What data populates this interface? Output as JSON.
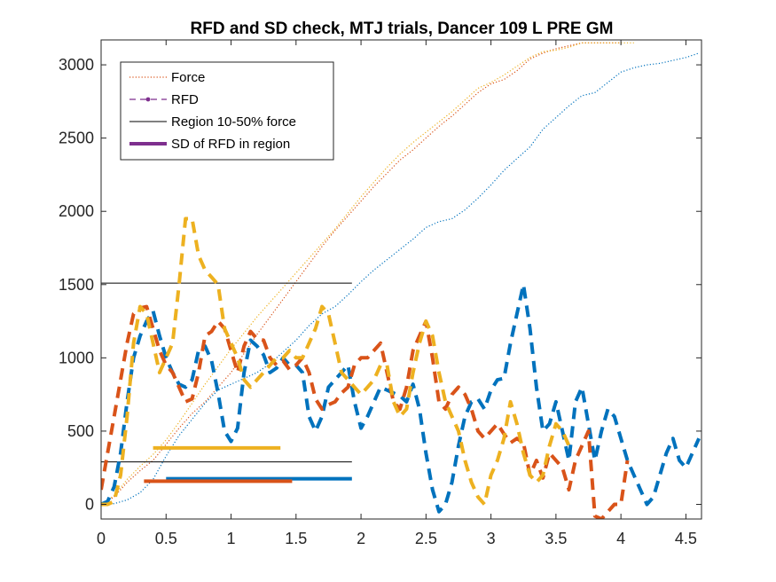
{
  "chart_data": {
    "type": "line",
    "title": "RFD and SD check, MTJ trials, Dancer 109 L PRE GM",
    "xlabel": "",
    "ylabel": "",
    "xlim": [
      0,
      4.62
    ],
    "ylim": [
      -100,
      3170
    ],
    "x_ticks": [
      0,
      0.5,
      1,
      1.5,
      2,
      2.5,
      3,
      3.5,
      4,
      4.5
    ],
    "x_tick_labels": [
      "0",
      "0.5",
      "1",
      "1.5",
      "2",
      "2.5",
      "3",
      "3.5",
      "4",
      "4.5"
    ],
    "y_ticks": [
      0,
      500,
      1000,
      1500,
      2000,
      2500,
      3000
    ],
    "y_tick_labels": [
      "0",
      "500",
      "1000",
      "1500",
      "2000",
      "2500",
      "3000"
    ],
    "grid": false,
    "legend_location": "top-left",
    "legend": [
      {
        "label": "Force",
        "style": "dotted",
        "color": "#D95319"
      },
      {
        "label": "RFD",
        "style": "dashed-marker",
        "color": "#7E2F8E"
      },
      {
        "label": "Region 10-50% force",
        "style": "solid-thin",
        "color": "#000000"
      },
      {
        "label": "SD of RFD in region",
        "style": "solid-thick",
        "color": "#7E2F8E"
      }
    ],
    "colors": {
      "blue": "#0072BD",
      "orange": "#D95319",
      "yellow": "#EDB120",
      "black": "#000000"
    },
    "force_series": [
      {
        "color": "#0072BD",
        "x": [
          0,
          0.1,
          0.2,
          0.3,
          0.4,
          0.5,
          0.6,
          0.7,
          0.8,
          0.9,
          1.0,
          1.1,
          1.2,
          1.3,
          1.4,
          1.5,
          1.6,
          1.7,
          1.8,
          1.9,
          2.0,
          2.1,
          2.2,
          2.3,
          2.4,
          2.5,
          2.6,
          2.7,
          2.8,
          2.9,
          3.0,
          3.1,
          3.2,
          3.3,
          3.4,
          3.5,
          3.6,
          3.7,
          3.8,
          3.9,
          4.0,
          4.1,
          4.2,
          4.3,
          4.4,
          4.5,
          4.6
        ],
        "y": [
          0,
          5,
          30,
          80,
          170,
          330,
          470,
          580,
          690,
          780,
          820,
          860,
          900,
          960,
          1040,
          1120,
          1220,
          1300,
          1350,
          1430,
          1520,
          1600,
          1670,
          1740,
          1810,
          1890,
          1930,
          1950,
          2010,
          2090,
          2180,
          2280,
          2360,
          2440,
          2560,
          2640,
          2720,
          2790,
          2810,
          2880,
          2950,
          2980,
          3000,
          3010,
          3030,
          3050,
          3080
        ]
      },
      {
        "color": "#D95319",
        "x": [
          0,
          0.1,
          0.2,
          0.3,
          0.4,
          0.5,
          0.6,
          0.7,
          0.8,
          0.9,
          1.0,
          1.1,
          1.2,
          1.3,
          1.4,
          1.5,
          1.6,
          1.7,
          1.8,
          1.9,
          2.0,
          2.1,
          2.2,
          2.3,
          2.4,
          2.5,
          2.6,
          2.7,
          2.8,
          2.9,
          3.0,
          3.1,
          3.2,
          3.3,
          3.4,
          3.5,
          3.6,
          3.7,
          3.8,
          3.9,
          4.0
        ],
        "y": [
          0,
          50,
          150,
          230,
          300,
          410,
          520,
          620,
          700,
          800,
          900,
          1030,
          1160,
          1280,
          1400,
          1520,
          1640,
          1760,
          1870,
          1970,
          2070,
          2170,
          2260,
          2350,
          2420,
          2500,
          2580,
          2650,
          2730,
          2810,
          2870,
          2900,
          2960,
          3040,
          3080,
          3110,
          3130,
          3150,
          3150,
          3150,
          3150
        ]
      },
      {
        "color": "#EDB120",
        "x": [
          0,
          0.1,
          0.2,
          0.3,
          0.4,
          0.5,
          0.6,
          0.7,
          0.8,
          0.9,
          1.0,
          1.1,
          1.2,
          1.3,
          1.4,
          1.5,
          1.6,
          1.7,
          1.8,
          1.9,
          2.0,
          2.1,
          2.2,
          2.3,
          2.4,
          2.5,
          2.6,
          2.7,
          2.8,
          2.9,
          3.0,
          3.1,
          3.2,
          3.3,
          3.4,
          3.5,
          3.6,
          3.7,
          3.8,
          3.9,
          4.0,
          4.1
        ],
        "y": [
          0,
          60,
          170,
          260,
          340,
          440,
          560,
          690,
          820,
          940,
          1060,
          1170,
          1280,
          1380,
          1480,
          1580,
          1680,
          1780,
          1880,
          1990,
          2100,
          2200,
          2300,
          2390,
          2470,
          2540,
          2610,
          2680,
          2760,
          2840,
          2880,
          2930,
          2990,
          3050,
          3090,
          3100,
          3120,
          3150,
          3150,
          3150,
          3150,
          3150
        ]
      }
    ],
    "rfd_series": [
      {
        "color": "#0072BD",
        "x": [
          0,
          0.05,
          0.1,
          0.15,
          0.2,
          0.25,
          0.3,
          0.35,
          0.4,
          0.45,
          0.5,
          0.55,
          0.6,
          0.65,
          0.7,
          0.75,
          0.8,
          0.85,
          0.9,
          0.95,
          1.0,
          1.05,
          1.1,
          1.15,
          1.2,
          1.25,
          1.3,
          1.35,
          1.4,
          1.45,
          1.5,
          1.55,
          1.6,
          1.65,
          1.7,
          1.75,
          1.8,
          1.85,
          1.9,
          1.95,
          2.0,
          2.05,
          2.1,
          2.15,
          2.2,
          2.25,
          2.3,
          2.35,
          2.4,
          2.45,
          2.5,
          2.55,
          2.6,
          2.65,
          2.7,
          2.75,
          2.8,
          2.85,
          2.9,
          2.95,
          3.0,
          3.05,
          3.1,
          3.15,
          3.2,
          3.25,
          3.3,
          3.35,
          3.4,
          3.45,
          3.5,
          3.55,
          3.6,
          3.65,
          3.7,
          3.75,
          3.8,
          3.85,
          3.9,
          3.95,
          4.0,
          4.05,
          4.1,
          4.15,
          4.2,
          4.25,
          4.3,
          4.35,
          4.4,
          4.45,
          4.5,
          4.55,
          4.6
        ],
        "y": [
          0,
          20,
          120,
          350,
          700,
          1000,
          1150,
          1250,
          1320,
          1150,
          1000,
          900,
          820,
          800,
          850,
          1050,
          1080,
          980,
          760,
          500,
          430,
          520,
          900,
          1120,
          1080,
          1020,
          900,
          930,
          1000,
          950,
          950,
          900,
          600,
          500,
          600,
          800,
          850,
          900,
          950,
          700,
          520,
          600,
          700,
          800,
          780,
          760,
          740,
          700,
          820,
          650,
          350,
          100,
          -50,
          0,
          150,
          400,
          600,
          700,
          720,
          650,
          780,
          850,
          860,
          1100,
          1300,
          1500,
          1200,
          800,
          500,
          550,
          700,
          500,
          300,
          700,
          800,
          550,
          300,
          500,
          650,
          600,
          450,
          300,
          200,
          100,
          0,
          50,
          200,
          350,
          450,
          300,
          250,
          350,
          450
        ]
      },
      {
        "color": "#D95319",
        "x": [
          0,
          0.05,
          0.1,
          0.15,
          0.2,
          0.25,
          0.3,
          0.35,
          0.4,
          0.45,
          0.5,
          0.55,
          0.6,
          0.65,
          0.7,
          0.75,
          0.8,
          0.85,
          0.9,
          0.95,
          1.0,
          1.05,
          1.1,
          1.15,
          1.2,
          1.25,
          1.3,
          1.35,
          1.4,
          1.45,
          1.5,
          1.55,
          1.6,
          1.65,
          1.7,
          1.75,
          1.8,
          1.85,
          1.9,
          1.95,
          2.0,
          2.05,
          2.1,
          2.15,
          2.2,
          2.25,
          2.3,
          2.35,
          2.4,
          2.45,
          2.5,
          2.55,
          2.6,
          2.65,
          2.7,
          2.75,
          2.8,
          2.85,
          2.9,
          2.95,
          3.0,
          3.05,
          3.1,
          3.15,
          3.2,
          3.25,
          3.3,
          3.35,
          3.4,
          3.45,
          3.5,
          3.55,
          3.6,
          3.65,
          3.7,
          3.75,
          3.8,
          3.85,
          3.9,
          3.95,
          4.0,
          4.05
        ],
        "y": [
          100,
          350,
          600,
          850,
          1100,
          1300,
          1340,
          1350,
          1200,
          1050,
          950,
          900,
          800,
          700,
          720,
          900,
          1150,
          1180,
          1250,
          1200,
          1050,
          900,
          1080,
          1180,
          1130,
          1120,
          1000,
          950,
          980,
          920,
          950,
          1000,
          900,
          720,
          650,
          680,
          700,
          760,
          800,
          950,
          1000,
          1000,
          1050,
          1100,
          900,
          700,
          650,
          800,
          1050,
          1150,
          1250,
          1000,
          700,
          650,
          750,
          800,
          750,
          650,
          500,
          450,
          500,
          550,
          480,
          420,
          450,
          420,
          200,
          300,
          180,
          350,
          300,
          250,
          100,
          300,
          400,
          500,
          -80,
          -100,
          -50,
          0,
          0,
          300
        ]
      },
      {
        "color": "#EDB120",
        "x": [
          0,
          0.05,
          0.1,
          0.15,
          0.2,
          0.25,
          0.3,
          0.35,
          0.4,
          0.45,
          0.5,
          0.55,
          0.6,
          0.65,
          0.7,
          0.75,
          0.8,
          0.85,
          0.9,
          0.95,
          1.0,
          1.05,
          1.1,
          1.15,
          1.2,
          1.25,
          1.3,
          1.35,
          1.4,
          1.45,
          1.5,
          1.55,
          1.6,
          1.65,
          1.7,
          1.75,
          1.8,
          1.85,
          1.9,
          1.95,
          2.0,
          2.05,
          2.1,
          2.15,
          2.2,
          2.25,
          2.3,
          2.35,
          2.4,
          2.45,
          2.5,
          2.55,
          2.6,
          2.65,
          2.7,
          2.75,
          2.8,
          2.85,
          2.9,
          2.95,
          3.0,
          3.05,
          3.1,
          3.15,
          3.2,
          3.25,
          3.3,
          3.35,
          3.4,
          3.45,
          3.5,
          3.55,
          3.6
        ],
        "y": [
          0,
          0,
          20,
          200,
          600,
          1100,
          1350,
          1300,
          1100,
          900,
          1000,
          1100,
          1500,
          1950,
          1950,
          1700,
          1600,
          1550,
          1500,
          1200,
          1100,
          1000,
          850,
          800,
          850,
          900,
          950,
          1000,
          1000,
          1050,
          1000,
          1000,
          1100,
          1200,
          1350,
          1300,
          1100,
          900,
          850,
          800,
          750,
          800,
          850,
          950,
          950,
          700,
          600,
          650,
          900,
          1100,
          1250,
          1150,
          900,
          700,
          600,
          500,
          300,
          150,
          50,
          0,
          200,
          300,
          450,
          700,
          550,
          350,
          200,
          150,
          200,
          400,
          550,
          500,
          400
        ]
      }
    ],
    "region_lines": [
      {
        "label": "Region 10-50% force",
        "y": 290,
        "x_start": 0,
        "x_end": 1.93,
        "color": "#000000"
      },
      {
        "label": "Region 10-50% force",
        "y": 1510,
        "x_start": 0,
        "x_end": 1.93,
        "color": "#000000"
      }
    ],
    "sd_bars": [
      {
        "color": "#EDB120",
        "y": 385,
        "x_start": 0.4,
        "x_end": 1.38
      },
      {
        "color": "#0072BD",
        "y": 175,
        "x_start": 0.5,
        "x_end": 1.93
      },
      {
        "color": "#D95319",
        "y": 158,
        "x_start": 0.33,
        "x_end": 1.47
      }
    ]
  }
}
